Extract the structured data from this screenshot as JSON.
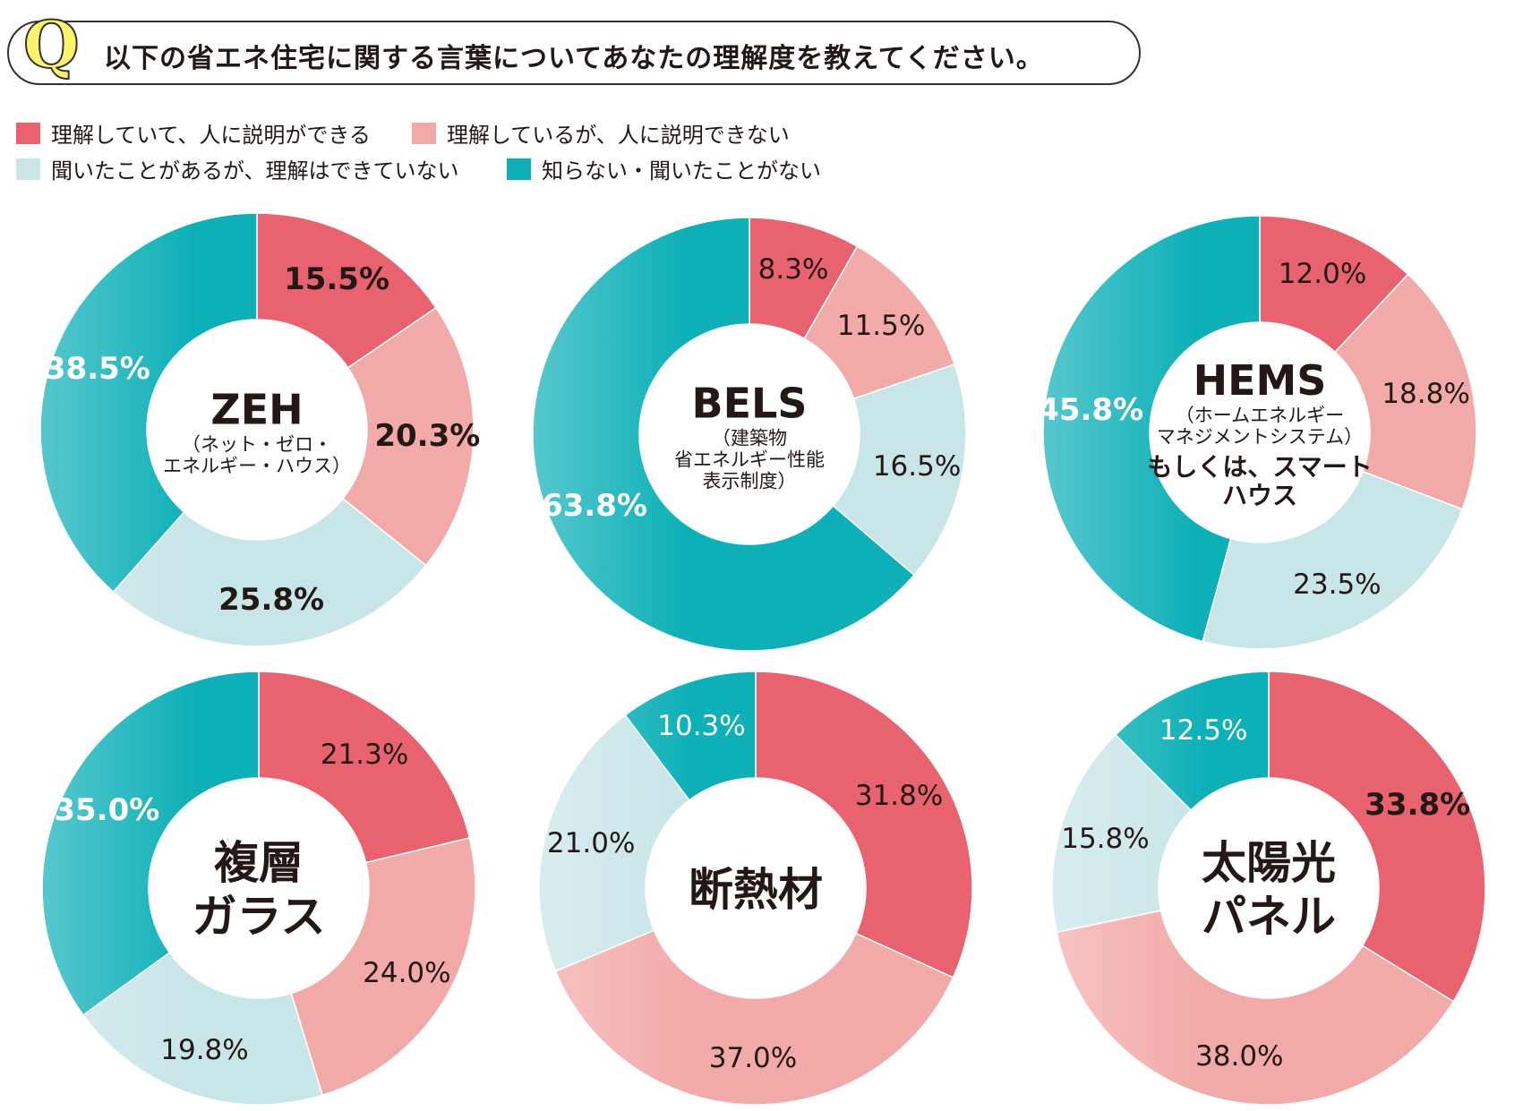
{
  "question": {
    "mark": "Q",
    "text": "以下の省エネ住宅に関する言葉についてあなたの理解度を教えてください。"
  },
  "colors": {
    "understand_explain": "#e8636f",
    "understand_no_explain": "#f2aaa8",
    "heard_not_understand": "#c8e5e8",
    "not_know": "#0eb0b8"
  },
  "legend": [
    {
      "label": "理解していて、人に説明ができる",
      "color": "#e8636f"
    },
    {
      "label": "理解しているが、人に説明できない",
      "color": "#f2aaa8"
    },
    {
      "label": "聞いたことがあるが、理解はできていない",
      "color": "#c8e5e8"
    },
    {
      "label": "知らない・聞いたことがない",
      "color": "#0eb0b8"
    }
  ],
  "chart_data": [
    {
      "type": "pie",
      "donut": true,
      "title": "ZEH",
      "subtitle": [
        "（ネット・ゼロ・",
        "エネルギー・ハウス）"
      ],
      "extra": [],
      "categories": [
        "理解していて、人に説明ができる",
        "理解しているが、人に説明できない",
        "聞いたことがあるが、理解はできていない",
        "知らない・聞いたことがない"
      ],
      "values": [
        15.5,
        20.3,
        25.8,
        38.5
      ],
      "labels": [
        "15.5%",
        "20.3%",
        "25.8%",
        "38.5%"
      ],
      "bold": [
        true,
        true,
        true,
        true
      ]
    },
    {
      "type": "pie",
      "donut": true,
      "title": "BELS",
      "subtitle": [
        "（建築物",
        "省エネルギー性能",
        "表示制度）"
      ],
      "extra": [],
      "categories": [
        "理解していて、人に説明ができる",
        "理解しているが、人に説明できない",
        "聞いたことがあるが、理解はできていない",
        "知らない・聞いたことがない"
      ],
      "values": [
        8.3,
        11.5,
        16.5,
        63.8
      ],
      "labels": [
        "8.3%",
        "11.5%",
        "16.5%",
        "63.8%"
      ],
      "bold": [
        false,
        false,
        false,
        true
      ]
    },
    {
      "type": "pie",
      "donut": true,
      "title": "HEMS",
      "subtitle": [
        "（ホームエネルギー",
        "マネジメントシステム）"
      ],
      "extra": [
        "もしくは、スマート",
        "ハウス"
      ],
      "categories": [
        "理解していて、人に説明ができる",
        "理解しているが、人に説明できない",
        "聞いたことがあるが、理解はできていない",
        "知らない・聞いたことがない"
      ],
      "values": [
        12.0,
        18.8,
        23.5,
        45.8
      ],
      "labels": [
        "12.0%",
        "18.8%",
        "23.5%",
        "45.8%"
      ],
      "bold": [
        false,
        false,
        false,
        true
      ]
    },
    {
      "type": "pie",
      "donut": true,
      "title": "複層\nガラス",
      "subtitle": [],
      "extra": [],
      "categories": [
        "理解していて、人に説明ができる",
        "理解しているが、人に説明できない",
        "聞いたことがあるが、理解はできていない",
        "知らない・聞いたことがない"
      ],
      "values": [
        21.3,
        24.0,
        19.8,
        35.0
      ],
      "labels": [
        "21.3%",
        "24.0%",
        "19.8%",
        "35.0%"
      ],
      "bold": [
        false,
        false,
        false,
        true
      ]
    },
    {
      "type": "pie",
      "donut": true,
      "title": "断熱材",
      "subtitle": [],
      "extra": [],
      "categories": [
        "理解していて、人に説明ができる",
        "理解しているが、人に説明できない",
        "聞いたことがあるが、理解はできていない",
        "知らない・聞いたことがない"
      ],
      "values": [
        31.8,
        37.0,
        21.0,
        10.3
      ],
      "labels": [
        "31.8%",
        "37.0%",
        "21.0%",
        "10.3%"
      ],
      "bold": [
        false,
        false,
        false,
        false
      ]
    },
    {
      "type": "pie",
      "donut": true,
      "title": "太陽光\nパネル",
      "subtitle": [],
      "extra": [],
      "categories": [
        "理解していて、人に説明ができる",
        "理解しているが、人に説明できない",
        "聞いたことがあるが、理解はできていない",
        "知らない・聞いたことがない"
      ],
      "values": [
        33.8,
        38.0,
        15.8,
        12.5
      ],
      "labels": [
        "33.8%",
        "38.0%",
        "15.8%",
        "12.5%"
      ],
      "bold": [
        true,
        false,
        false,
        false
      ]
    }
  ]
}
